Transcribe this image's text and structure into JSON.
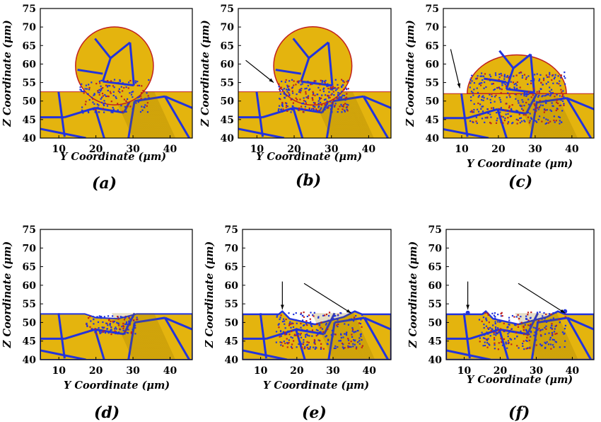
{
  "figure": {
    "panels": [
      {
        "id": "a",
        "label": "(a)",
        "state": "sphere",
        "arrows": []
      },
      {
        "id": "b",
        "label": "(b)",
        "state": "sphere-deformed",
        "arrows": [
          "diag-left"
        ]
      },
      {
        "id": "c",
        "label": "(c)",
        "state": "sphere-flattened",
        "arrows": [
          "left-edge"
        ]
      },
      {
        "id": "d",
        "label": "(d)",
        "state": "flat",
        "arrows": []
      },
      {
        "id": "e",
        "label": "(e)",
        "state": "crater",
        "arrows": [
          "down",
          "diag-right"
        ]
      },
      {
        "id": "f",
        "label": "(f)",
        "state": "crater-rims",
        "arrows": [
          "down",
          "diag-right"
        ]
      }
    ]
  },
  "axes": {
    "ylabel": "Z Coordinate (μm)",
    "xlabel": "Y Coordinate (μm)",
    "yticks": [
      "75",
      "70",
      "65",
      "60",
      "55",
      "50",
      "45",
      "40"
    ],
    "xticks": [
      "10",
      "20",
      "30",
      "40"
    ],
    "yrange": [
      40,
      75
    ],
    "xrange": [
      5,
      46
    ]
  },
  "colors": {
    "grain": "#E4B40E",
    "boundary": "#2233DD",
    "defect": "#C0201E",
    "frame": "#000000"
  }
}
